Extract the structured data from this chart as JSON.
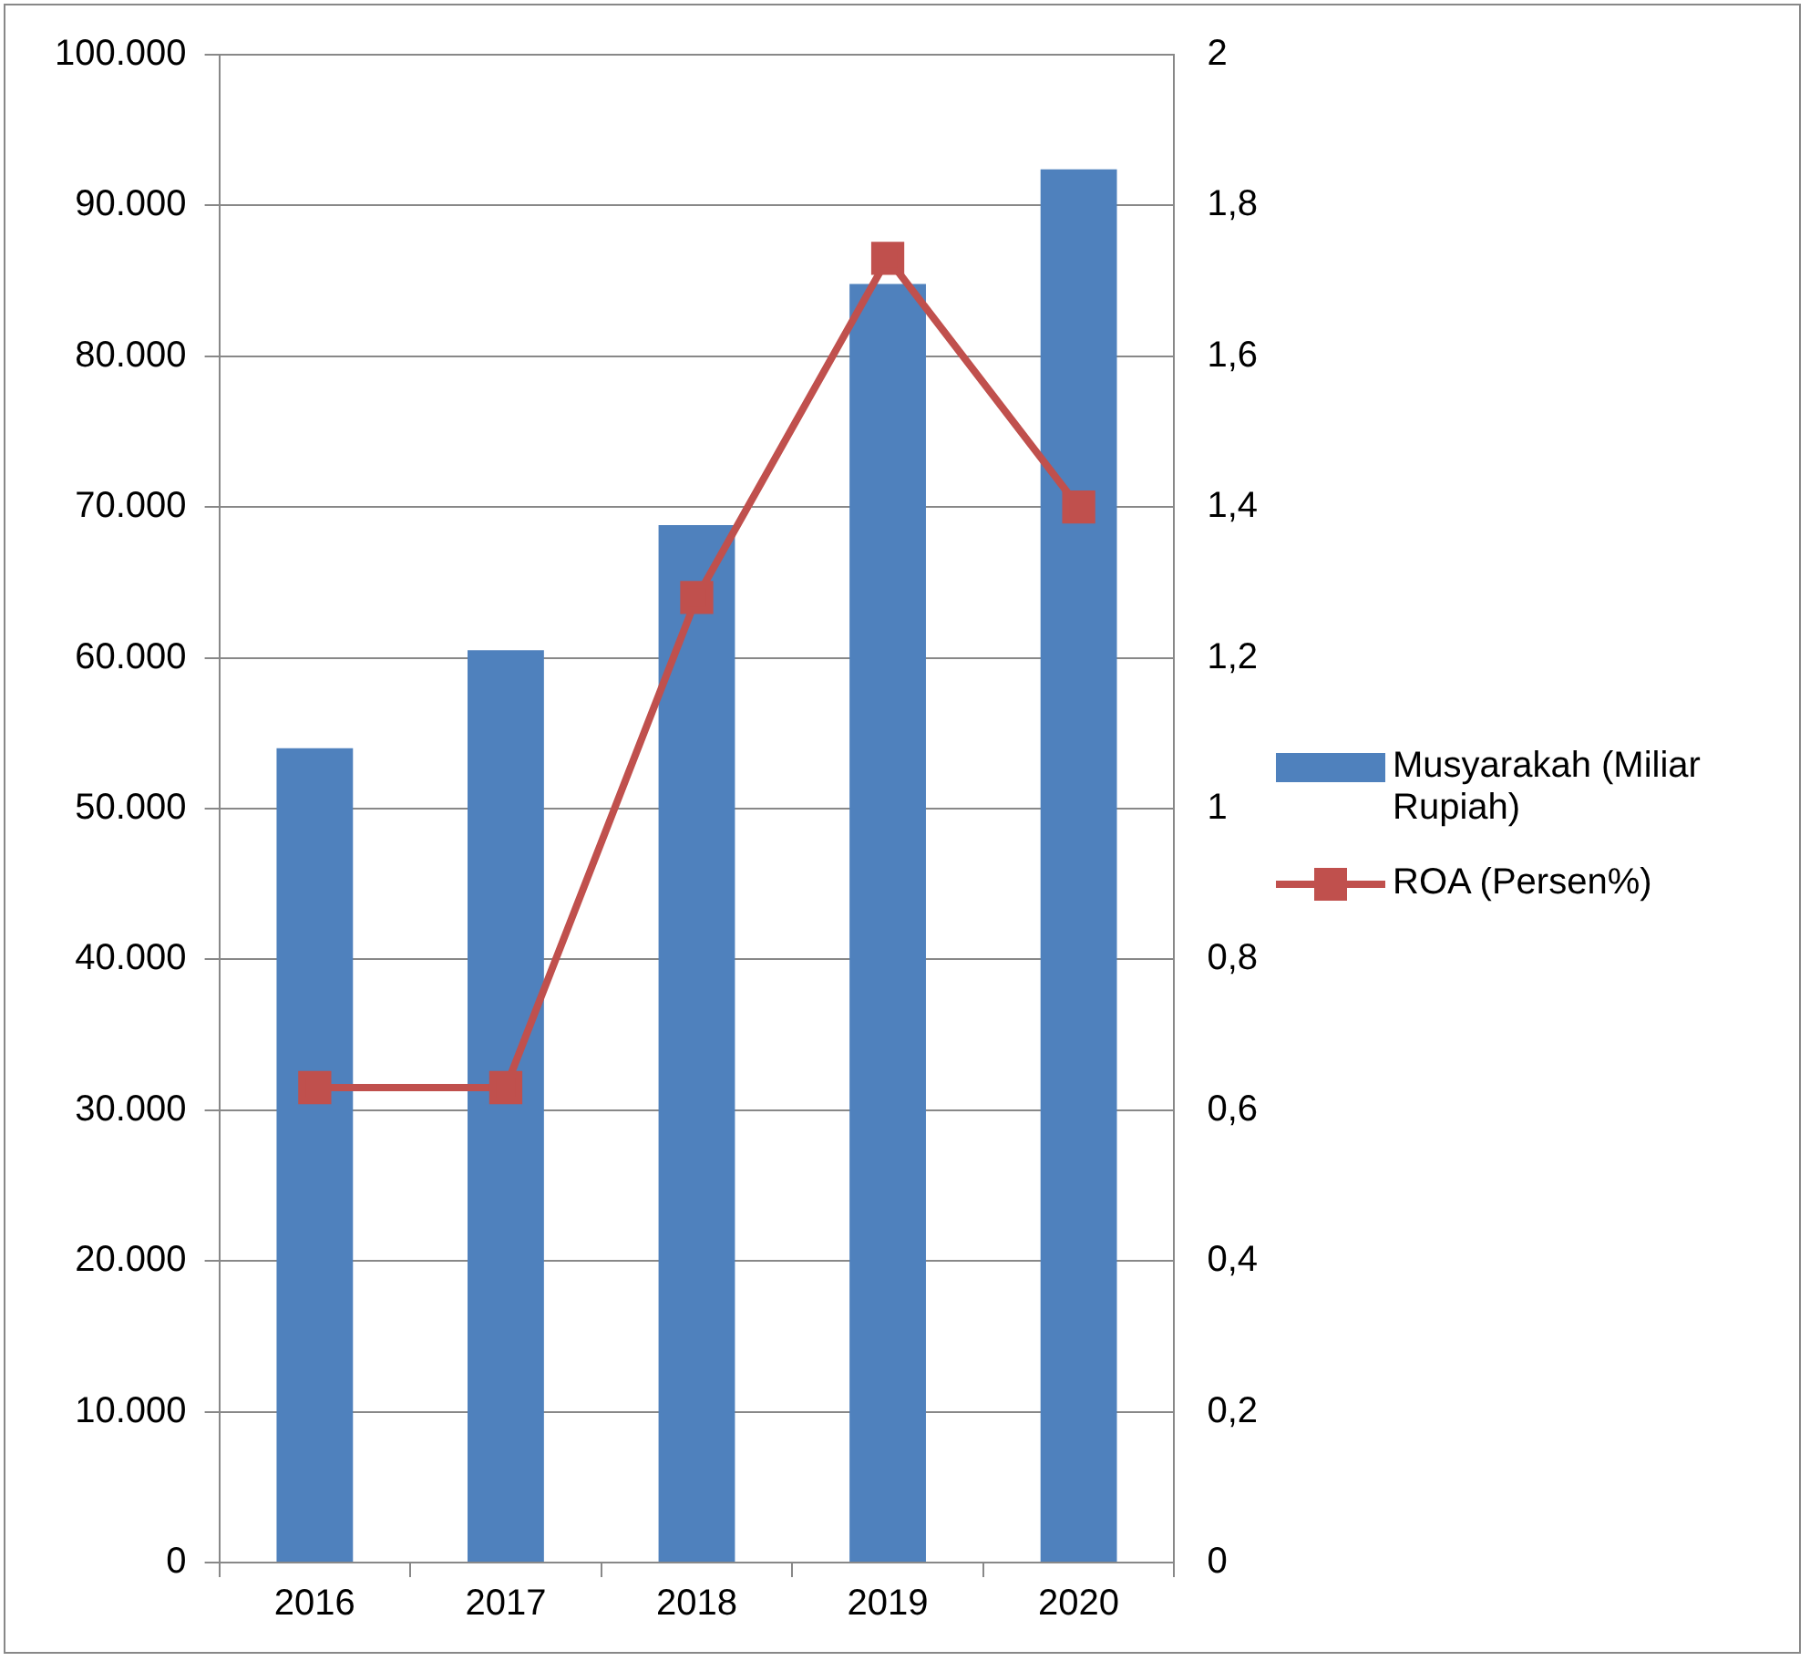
{
  "chart_data": {
    "type": "bar",
    "categories": [
      "2016",
      "2017",
      "2018",
      "2019",
      "2020"
    ],
    "series": [
      {
        "name": "Musyarakah (Miliar Rupiah)",
        "color": "#4f81bd",
        "values": [
          54000,
          60500,
          68800,
          84800,
          92400
        ]
      },
      {
        "name": "ROA (Persen%)",
        "type": "line",
        "axis": "y2",
        "color": "#c0504d",
        "values": [
          0.63,
          0.63,
          1.28,
          1.73,
          1.4
        ]
      }
    ],
    "ylim": [
      0,
      100000
    ],
    "yticks": [
      {
        "value": 0,
        "label": "0"
      },
      {
        "value": 10000,
        "label": "10.000"
      },
      {
        "value": 20000,
        "label": "20.000"
      },
      {
        "value": 30000,
        "label": "30.000"
      },
      {
        "value": 40000,
        "label": "40.000"
      },
      {
        "value": 50000,
        "label": "50.000"
      },
      {
        "value": 60000,
        "label": "60.000"
      },
      {
        "value": 70000,
        "label": "70.000"
      },
      {
        "value": 80000,
        "label": "80.000"
      },
      {
        "value": 90000,
        "label": "90.000"
      },
      {
        "value": 100000,
        "label": "100.000"
      }
    ],
    "y2lim": [
      0,
      2
    ],
    "y2ticks": [
      0,
      {
        "value": 0.2,
        "label": "0,2"
      },
      {
        "value": 0.4,
        "label": "0,4"
      },
      {
        "value": 0.6,
        "label": "0,6"
      },
      {
        "value": 0.8,
        "label": "0,8"
      },
      1,
      {
        "value": 1.2,
        "label": "1,2"
      },
      {
        "value": 1.4,
        "label": "1,4"
      },
      {
        "value": 1.6,
        "label": "1,6"
      },
      {
        "value": 1.8,
        "label": "1,8"
      },
      2
    ],
    "grid": "y",
    "legend": "right",
    "marker": "square",
    "line_style": "solid"
  }
}
